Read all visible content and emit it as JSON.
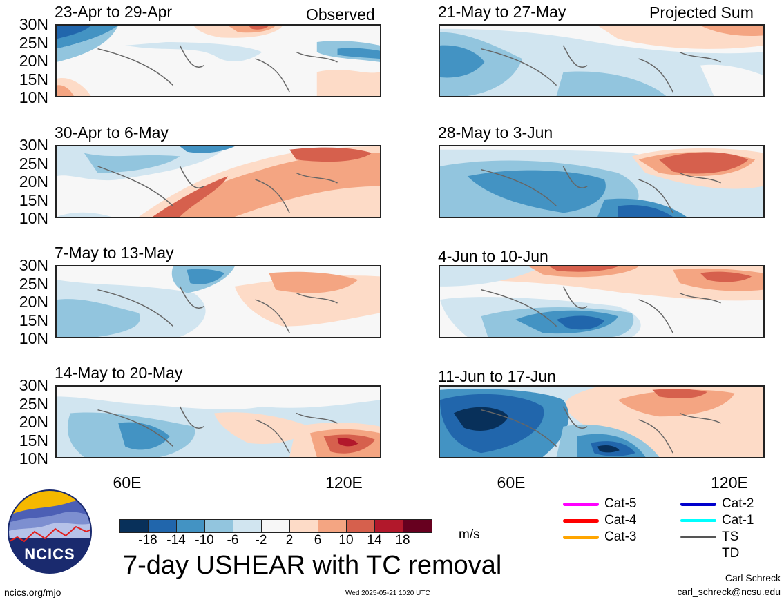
{
  "header": {
    "left_label": "Observed",
    "right_label": "Projected Sum"
  },
  "panels_left": [
    {
      "title": "23-Apr to 29-Apr"
    },
    {
      "title": "30-Apr to 6-May"
    },
    {
      "title": "7-May to 13-May"
    },
    {
      "title": "14-May to 20-May"
    }
  ],
  "panels_right": [
    {
      "title": "21-May to 27-May"
    },
    {
      "title": "28-May to 3-Jun"
    },
    {
      "title": "4-Jun to 10-Jun"
    },
    {
      "title": "11-Jun to 17-Jun"
    }
  ],
  "lat_labels": [
    "30N",
    "25N",
    "20N",
    "15N",
    "10N"
  ],
  "lon_labels": [
    "60E",
    "120E"
  ],
  "colorbar": {
    "ticks": [
      "-18",
      "-14",
      "-10",
      "-6",
      "-2",
      "2",
      "6",
      "10",
      "14",
      "18"
    ],
    "unit": "m/s",
    "colors": [
      "#08305a",
      "#2166ac",
      "#4393c3",
      "#92c5de",
      "#d1e5f0",
      "#f7f7f7",
      "#fddbc7",
      "#f4a582",
      "#d6604d",
      "#b2182b",
      "#67001f"
    ]
  },
  "legend": [
    {
      "label": "Cat-5",
      "color": "#ff00ff",
      "width": 5
    },
    {
      "label": "Cat-4",
      "color": "#ff0000",
      "width": 5
    },
    {
      "label": "Cat-3",
      "color": "#ffa500",
      "width": 5
    },
    {
      "label": "Cat-2",
      "color": "#0000cc",
      "width": 5
    },
    {
      "label": "Cat-1",
      "color": "#00ffff",
      "width": 4
    },
    {
      "label": "TS",
      "color": "#555555",
      "width": 2
    },
    {
      "label": "TD",
      "color": "#aaaaaa",
      "width": 1
    }
  ],
  "main_title": "7-day USHEAR with TC removal",
  "logo_text": "NCICS",
  "footer": {
    "left": "ncics.org/mjo",
    "center": "Wed 2025-05-21 1020 UTC",
    "author": "Carl Schreck",
    "email": "carl_schreck@ncsu.edu"
  }
}
